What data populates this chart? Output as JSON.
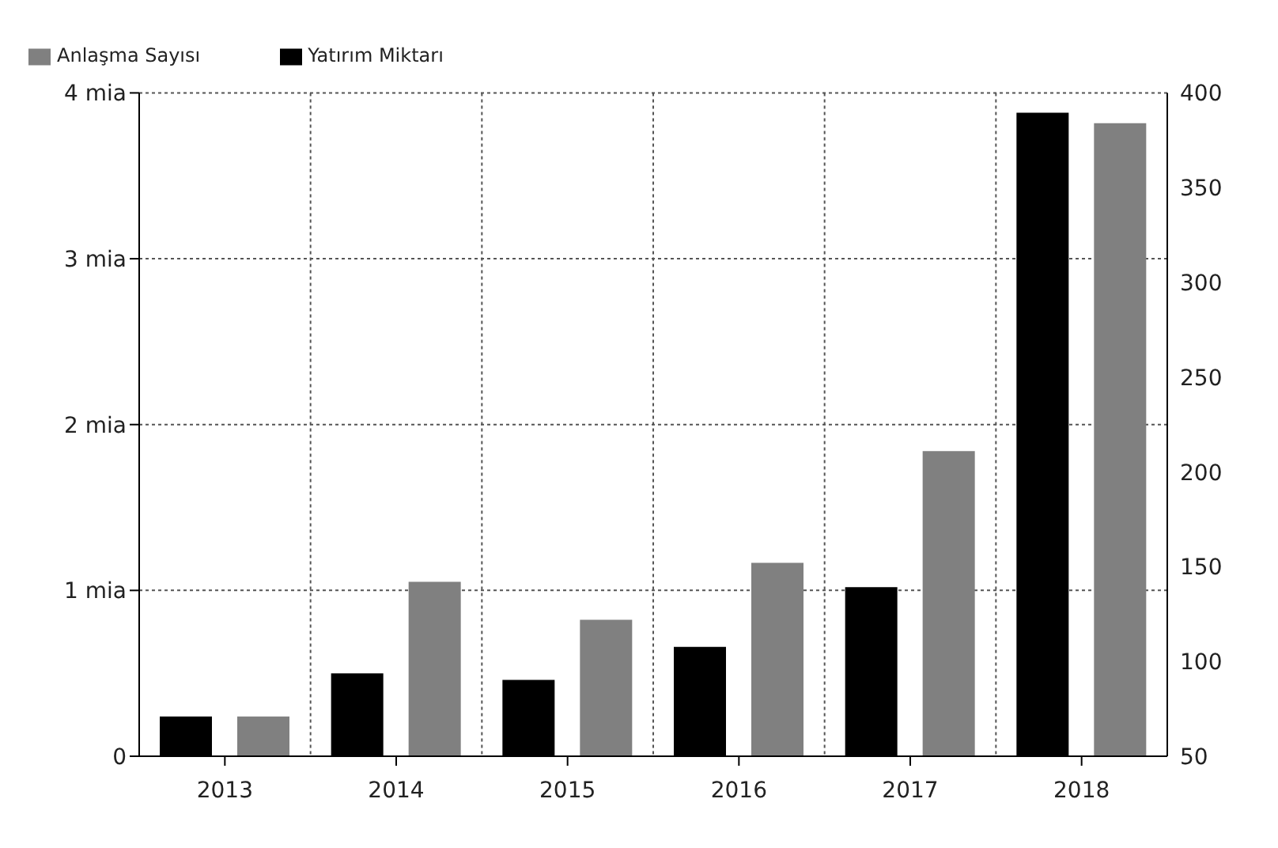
{
  "chart_data": {
    "type": "bar",
    "categories": [
      "2013",
      "2014",
      "2015",
      "2016",
      "2017",
      "2018"
    ],
    "series": [
      {
        "name": "Yatırım Miktarı",
        "color": "#000000",
        "values": [
          0.24,
          0.5,
          0.46,
          0.66,
          1.02,
          3.88
        ]
      },
      {
        "name": "Anlaşma Sayısı",
        "color": "#808080",
        "axis": "y2",
        "values": [
          71,
          142,
          122,
          152,
          211,
          384
        ]
      }
    ],
    "ylim": [
      0,
      4
    ],
    "yticks": [
      0,
      {
        "value": 1,
        "label": "1 mia"
      },
      {
        "value": 2,
        "label": "2 mia"
      },
      {
        "value": 3,
        "label": "3 mia"
      },
      {
        "value": 4,
        "label": "4 mia"
      }
    ],
    "y2lim": [
      50,
      400
    ],
    "y2ticks": [
      50,
      100,
      150,
      200,
      250,
      300,
      350,
      400
    ],
    "grid": true,
    "legend": "top left"
  }
}
